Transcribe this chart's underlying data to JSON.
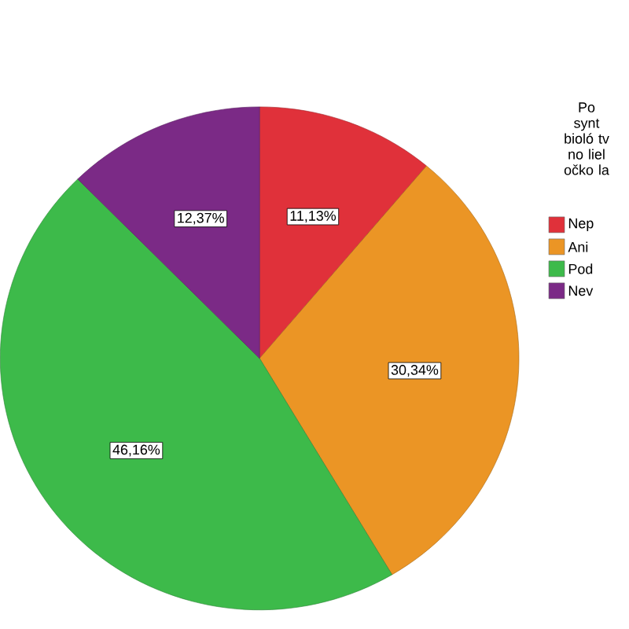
{
  "chart_data": {
    "type": "pie",
    "legend_title": "Po synt bioló tv no liel očko la",
    "categories": [
      "Nep",
      "Ani",
      "Pod",
      "Nev"
    ],
    "values": [
      11.13,
      30.34,
      46.16,
      12.37
    ],
    "value_labels": [
      "11,13%",
      "30,34%",
      "46,16%",
      "12,37%"
    ],
    "colors": [
      "#e0313a",
      "#eb9525",
      "#3dba4a",
      "#7b2a86"
    ],
    "legend": "right"
  }
}
